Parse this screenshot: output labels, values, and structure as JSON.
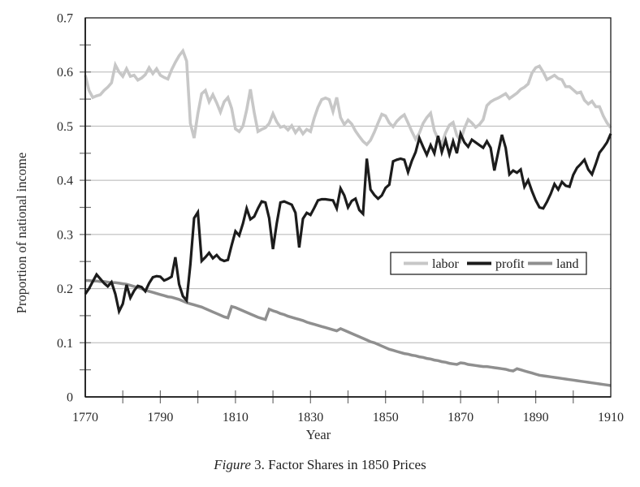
{
  "caption": {
    "prefix": "Figure",
    "rest": " 3. Factor Shares in 1850 Prices"
  },
  "chart_data": {
    "type": "line",
    "title": "Figure 3. Factor Shares in 1850 Prices",
    "xlabel": "Year",
    "ylabel": "Proportion of national income",
    "xlim": [
      1770,
      1910
    ],
    "ylim": [
      0,
      0.7
    ],
    "x_major_ticks": [
      1770,
      1790,
      1810,
      1830,
      1850,
      1870,
      1890,
      1910
    ],
    "x_minor_tick_step": 10,
    "y_major_ticks": [
      0,
      0.1,
      0.2,
      0.3,
      0.4,
      0.5,
      0.6,
      0.7
    ],
    "y_minor_tick_step": 0.05,
    "grid": "horizontal-major",
    "legend_position": "inside-middle-right",
    "colors": {
      "grid": "#b5b5b5",
      "axis": "#1a1a1a",
      "tick": "#6e6e6e",
      "text": "#2a2a2a",
      "background": "#ffffff"
    },
    "x_start": 1770,
    "x_step": 1,
    "draw_order": [
      0,
      2,
      1
    ],
    "series": [
      {
        "name": "labor",
        "color": "#c7c7c7",
        "width": 3.6,
        "values": [
          0.594,
          0.566,
          0.553,
          0.556,
          0.558,
          0.566,
          0.572,
          0.58,
          0.613,
          0.6,
          0.592,
          0.606,
          0.592,
          0.594,
          0.585,
          0.589,
          0.595,
          0.608,
          0.597,
          0.606,
          0.594,
          0.59,
          0.587,
          0.604,
          0.618,
          0.63,
          0.639,
          0.62,
          0.505,
          0.478,
          0.523,
          0.56,
          0.566,
          0.545,
          0.558,
          0.543,
          0.526,
          0.545,
          0.553,
          0.533,
          0.495,
          0.49,
          0.5,
          0.53,
          0.568,
          0.525,
          0.49,
          0.494,
          0.497,
          0.505,
          0.523,
          0.508,
          0.498,
          0.5,
          0.493,
          0.501,
          0.488,
          0.497,
          0.486,
          0.494,
          0.49,
          0.515,
          0.535,
          0.549,
          0.552,
          0.549,
          0.527,
          0.553,
          0.516,
          0.503,
          0.511,
          0.504,
          0.491,
          0.481,
          0.472,
          0.466,
          0.474,
          0.489,
          0.506,
          0.522,
          0.519,
          0.506,
          0.499,
          0.509,
          0.516,
          0.521,
          0.506,
          0.49,
          0.476,
          0.487,
          0.505,
          0.516,
          0.524,
          0.492,
          0.476,
          0.468,
          0.488,
          0.502,
          0.507,
          0.483,
          0.473,
          0.496,
          0.512,
          0.506,
          0.498,
          0.503,
          0.512,
          0.538,
          0.545,
          0.549,
          0.552,
          0.556,
          0.56,
          0.551,
          0.556,
          0.561,
          0.568,
          0.572,
          0.578,
          0.598,
          0.608,
          0.611,
          0.6,
          0.586,
          0.59,
          0.594,
          0.588,
          0.586,
          0.573,
          0.573,
          0.567,
          0.561,
          0.563,
          0.548,
          0.541,
          0.546,
          0.536,
          0.536,
          0.519,
          0.506,
          0.497
        ]
      },
      {
        "name": "profit",
        "color": "#1c1c1c",
        "width": 3.2,
        "values": [
          0.19,
          0.2,
          0.213,
          0.226,
          0.218,
          0.21,
          0.204,
          0.212,
          0.19,
          0.158,
          0.172,
          0.207,
          0.183,
          0.196,
          0.205,
          0.203,
          0.195,
          0.21,
          0.221,
          0.223,
          0.222,
          0.215,
          0.218,
          0.222,
          0.258,
          0.208,
          0.186,
          0.178,
          0.245,
          0.33,
          0.341,
          0.251,
          0.258,
          0.266,
          0.256,
          0.262,
          0.254,
          0.251,
          0.253,
          0.28,
          0.306,
          0.298,
          0.32,
          0.348,
          0.328,
          0.333,
          0.348,
          0.361,
          0.359,
          0.33,
          0.273,
          0.32,
          0.359,
          0.361,
          0.358,
          0.355,
          0.34,
          0.276,
          0.329,
          0.34,
          0.336,
          0.349,
          0.363,
          0.365,
          0.365,
          0.364,
          0.363,
          0.348,
          0.385,
          0.372,
          0.35,
          0.362,
          0.366,
          0.345,
          0.338,
          0.44,
          0.383,
          0.373,
          0.366,
          0.372,
          0.386,
          0.392,
          0.435,
          0.438,
          0.44,
          0.438,
          0.415,
          0.436,
          0.452,
          0.478,
          0.462,
          0.447,
          0.465,
          0.45,
          0.482,
          0.452,
          0.474,
          0.448,
          0.472,
          0.45,
          0.486,
          0.47,
          0.462,
          0.475,
          0.47,
          0.465,
          0.46,
          0.472,
          0.46,
          0.418,
          0.452,
          0.484,
          0.46,
          0.411,
          0.418,
          0.414,
          0.42,
          0.388,
          0.4,
          0.38,
          0.363,
          0.35,
          0.348,
          0.36,
          0.375,
          0.393,
          0.383,
          0.397,
          0.39,
          0.388,
          0.41,
          0.423,
          0.43,
          0.438,
          0.42,
          0.411,
          0.43,
          0.451,
          0.46,
          0.47,
          0.486
        ]
      },
      {
        "name": "land",
        "color": "#8f8f8f",
        "width": 3.5,
        "values": [
          0.215,
          0.215,
          0.214,
          0.214,
          0.213,
          0.213,
          0.212,
          0.211,
          0.211,
          0.21,
          0.209,
          0.208,
          0.206,
          0.204,
          0.202,
          0.2,
          0.197,
          0.195,
          0.193,
          0.191,
          0.189,
          0.187,
          0.185,
          0.184,
          0.182,
          0.18,
          0.177,
          0.174,
          0.172,
          0.17,
          0.168,
          0.166,
          0.163,
          0.16,
          0.157,
          0.154,
          0.151,
          0.148,
          0.146,
          0.167,
          0.165,
          0.162,
          0.159,
          0.156,
          0.153,
          0.15,
          0.147,
          0.145,
          0.143,
          0.162,
          0.159,
          0.157,
          0.154,
          0.152,
          0.149,
          0.147,
          0.145,
          0.143,
          0.141,
          0.138,
          0.136,
          0.134,
          0.132,
          0.13,
          0.128,
          0.126,
          0.124,
          0.122,
          0.126,
          0.123,
          0.12,
          0.117,
          0.114,
          0.111,
          0.108,
          0.105,
          0.102,
          0.1,
          0.097,
          0.094,
          0.091,
          0.088,
          0.086,
          0.084,
          0.082,
          0.08,
          0.079,
          0.077,
          0.076,
          0.074,
          0.073,
          0.071,
          0.07,
          0.068,
          0.067,
          0.065,
          0.064,
          0.062,
          0.061,
          0.06,
          0.063,
          0.062,
          0.06,
          0.059,
          0.058,
          0.057,
          0.056,
          0.056,
          0.055,
          0.054,
          0.053,
          0.052,
          0.051,
          0.049,
          0.048,
          0.052,
          0.05,
          0.048,
          0.046,
          0.044,
          0.042,
          0.04,
          0.039,
          0.038,
          0.037,
          0.036,
          0.035,
          0.034,
          0.033,
          0.032,
          0.031,
          0.03,
          0.029,
          0.028,
          0.027,
          0.026,
          0.025,
          0.024,
          0.023,
          0.022,
          0.021
        ]
      }
    ]
  }
}
